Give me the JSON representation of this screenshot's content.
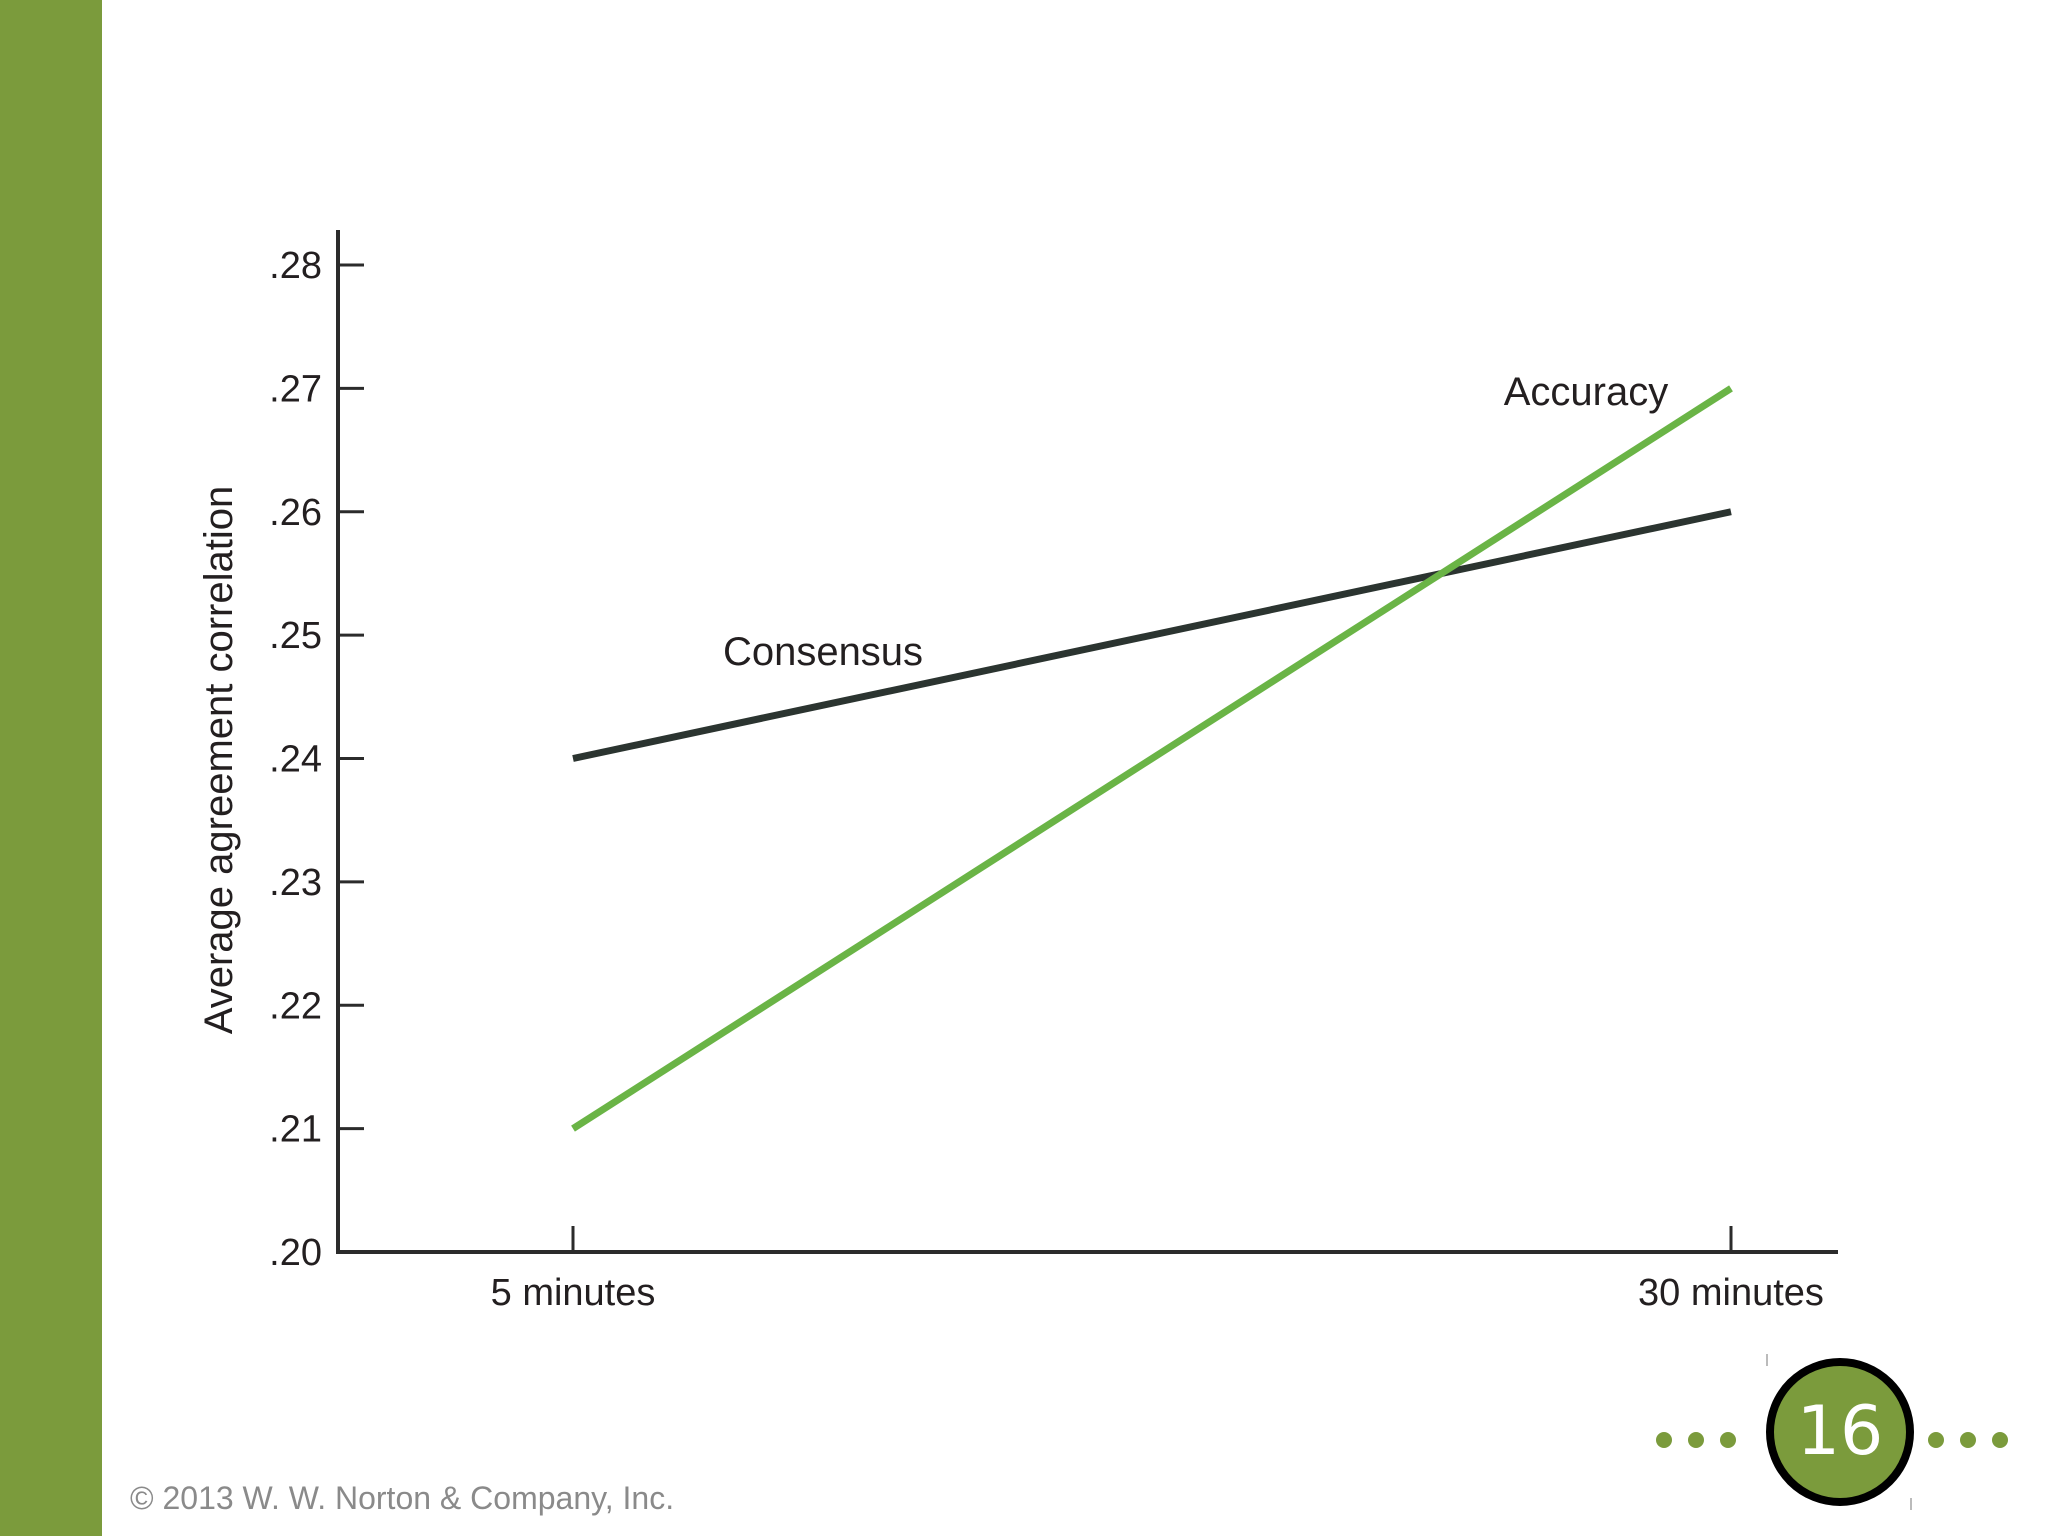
{
  "theme": {
    "accent": "#7b9b3c",
    "consensus_color": "#2b3430",
    "accuracy_color": "#6ab446",
    "axis_color": "#2b2b2b"
  },
  "chart_data": {
    "type": "line",
    "title": "",
    "xlabel": "",
    "ylabel": "Average agreement correlation",
    "categories": [
      "5 minutes",
      "30 minutes"
    ],
    "series": [
      {
        "name": "Consensus",
        "values": [
          0.24,
          0.26
        ]
      },
      {
        "name": "Accuracy",
        "values": [
          0.21,
          0.27
        ]
      }
    ],
    "ylim": [
      0.2,
      0.28
    ],
    "yticks": [
      0.2,
      0.21,
      0.22,
      0.23,
      0.24,
      0.25,
      0.26,
      0.27,
      0.28
    ],
    "ytick_labels": [
      ".20",
      ".21",
      ".22",
      ".23",
      ".24",
      ".25",
      ".26",
      ".27",
      ".28"
    ],
    "grid": false,
    "legend": "inline labels"
  },
  "footer": {
    "copyright": "© 2013 W. W. Norton & Company, Inc.",
    "page_number": "16"
  }
}
